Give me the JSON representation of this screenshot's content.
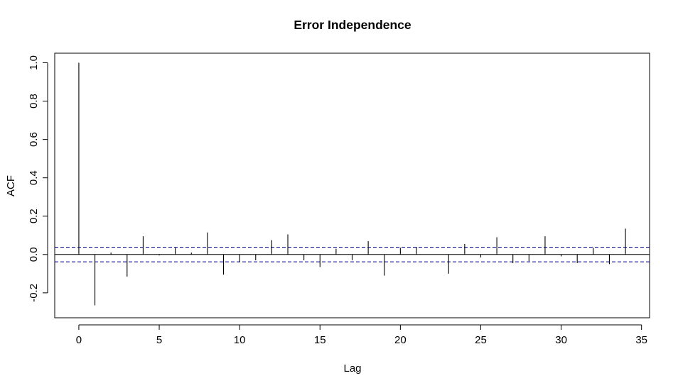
{
  "chart_data": {
    "type": "bar",
    "title": "Error Independence",
    "xlabel": "Lag",
    "ylabel": "ACF",
    "xlim": [
      -1.5,
      35.5
    ],
    "ylim": [
      -0.33,
      1.05
    ],
    "x_ticks": [
      0,
      5,
      10,
      15,
      20,
      25,
      30,
      35
    ],
    "x_tick_labels": [
      "0",
      "5",
      "10",
      "15",
      "20",
      "25",
      "30",
      "35"
    ],
    "y_ticks": [
      -0.2,
      0.0,
      0.2,
      0.4,
      0.6,
      0.8,
      1.0
    ],
    "y_tick_labels": [
      "-0.2",
      "0.0",
      "0.2",
      "0.4",
      "0.6",
      "0.8",
      "1.0"
    ],
    "confidence_bounds": [
      0.038,
      -0.038
    ],
    "confidence_line_color": "#00008b",
    "bar_color": "#000000",
    "grid": false,
    "x": [
      0,
      1,
      2,
      3,
      4,
      5,
      6,
      7,
      8,
      9,
      10,
      11,
      12,
      13,
      14,
      15,
      16,
      17,
      18,
      19,
      20,
      21,
      22,
      23,
      24,
      25,
      26,
      27,
      28,
      29,
      30,
      31,
      32,
      33,
      34
    ],
    "values": [
      1.0,
      -0.265,
      0.01,
      -0.115,
      0.095,
      -0.005,
      0.035,
      0.01,
      0.115,
      -0.105,
      -0.04,
      -0.03,
      0.075,
      0.105,
      -0.03,
      -0.065,
      0.03,
      -0.03,
      0.07,
      -0.11,
      0.035,
      0.04,
      0.0,
      -0.1,
      0.055,
      -0.015,
      0.09,
      -0.045,
      -0.035,
      0.095,
      -0.01,
      -0.045,
      0.035,
      -0.05,
      0.135
    ]
  }
}
